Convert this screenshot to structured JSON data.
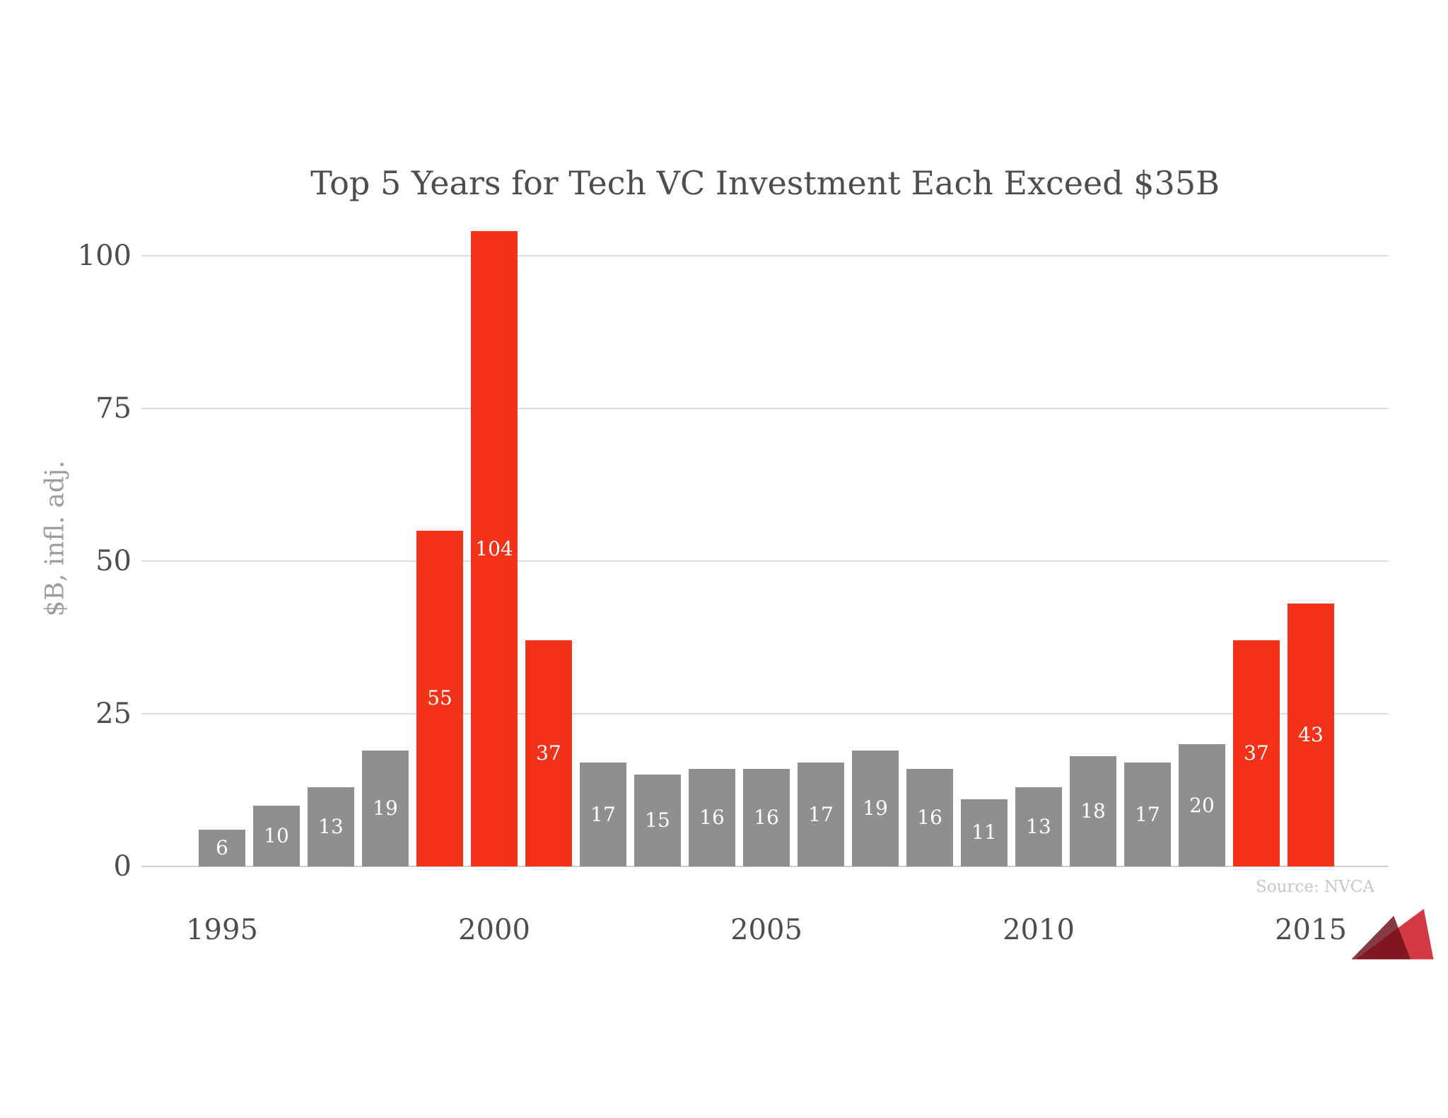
{
  "chart_data": {
    "type": "bar",
    "title": "Top 5 Years for Tech VC Investment Each Exceed $35B",
    "ylabel": "$B, infl. adj.",
    "source": "Source: NVCA",
    "categories": [
      1995,
      1996,
      1997,
      1998,
      1999,
      2000,
      2001,
      2002,
      2003,
      2004,
      2005,
      2006,
      2007,
      2008,
      2009,
      2010,
      2011,
      2012,
      2013,
      2014,
      2015
    ],
    "values": [
      6,
      10,
      13,
      19,
      55,
      104,
      37,
      17,
      15,
      16,
      16,
      17,
      19,
      16,
      11,
      13,
      18,
      17,
      20,
      37,
      43
    ],
    "highlighted_categories": [
      1999,
      2000,
      2001,
      2014,
      2015
    ],
    "bar_labels_visible": true,
    "yticks": [
      0,
      25,
      50,
      75,
      100
    ],
    "xticks": [
      1995,
      2000,
      2005,
      2010,
      2015
    ],
    "ylim": [
      0,
      107
    ],
    "grid": "horizontal",
    "legend": "none"
  },
  "colors": {
    "bar_default": "#8f8f8f",
    "bar_highlight": "#f43119",
    "bar_label": "#ffffff",
    "title_text": "#4d4d4d",
    "tick_text": "#4d4d4d",
    "axis_label_text": "#9c9c9c",
    "gridline": "#dcdcdc",
    "axis_line": "#cfcfcf",
    "source_text": "#c6c6c6",
    "logo_red": "#d43843",
    "logo_dark_red": "#7d1f28"
  }
}
